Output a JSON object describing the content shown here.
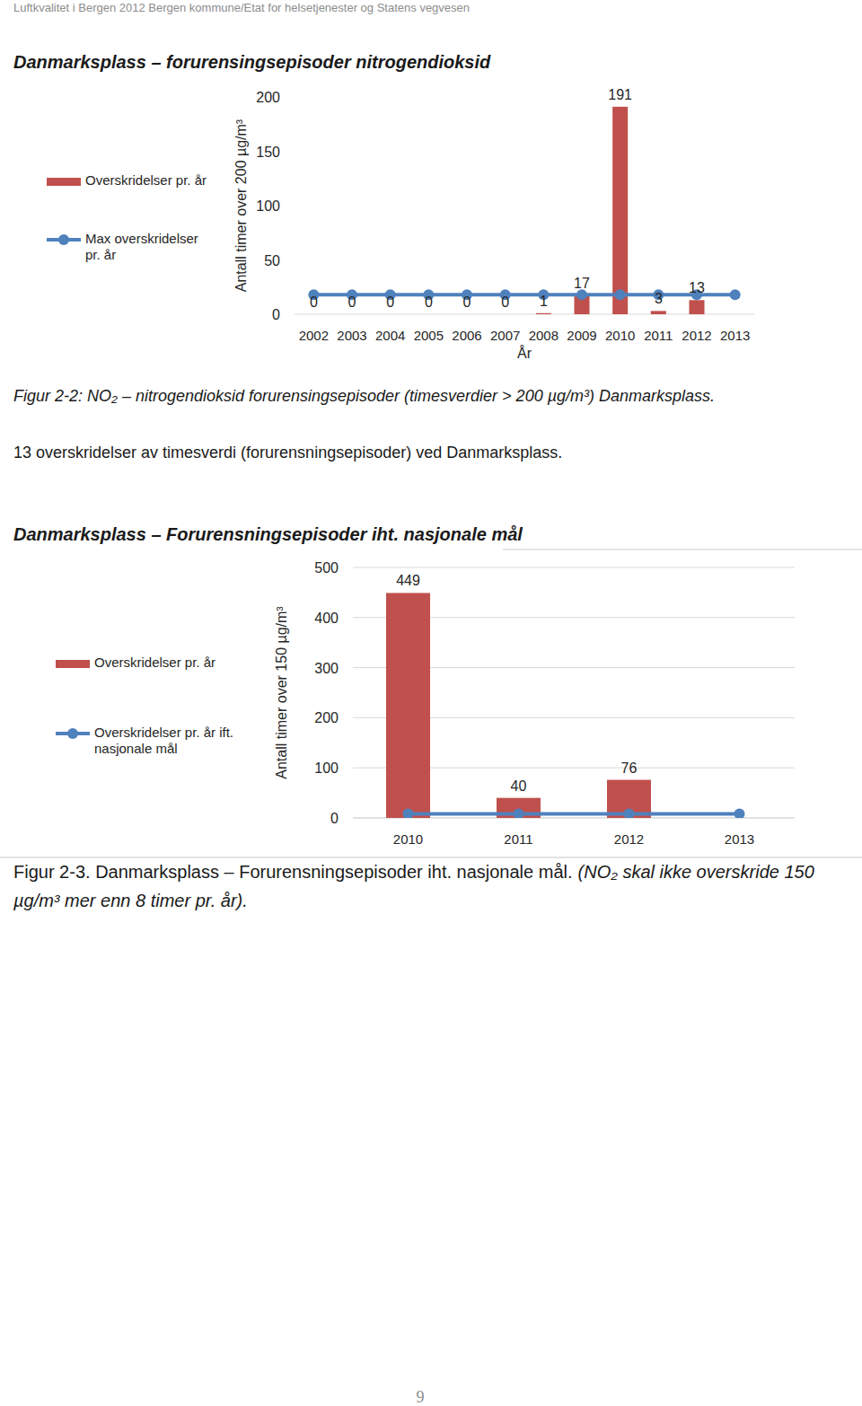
{
  "header": "Luftkvalitet i Bergen 2012 Bergen kommune/Etat for helsetjenester og Statens vegvesen",
  "chart_data": [
    {
      "type": "bar",
      "title": "Danmarksplass – forurensingsepisoder nitrogendioksid",
      "x_label": "År",
      "y_label": "Antall timer over 200 µg/m³",
      "categories": [
        "2002",
        "2003",
        "2004",
        "2005",
        "2006",
        "2007",
        "2008",
        "2009",
        "2010",
        "2011",
        "2012",
        "2013"
      ],
      "series": [
        {
          "name": "Overskridelser pr. år",
          "type": "bar",
          "color": "#c0504d",
          "values": [
            0,
            0,
            0,
            0,
            0,
            0,
            1,
            17,
            191,
            3,
            13,
            null
          ]
        },
        {
          "name": "Max overskridelser pr. år",
          "type": "line",
          "color": "#4f81bd",
          "marker": "circle",
          "values": [
            18,
            18,
            18,
            18,
            18,
            18,
            18,
            18,
            18,
            18,
            18,
            18
          ]
        }
      ],
      "ylim": [
        0,
        200
      ],
      "yticks": [
        0,
        50,
        100,
        150,
        200
      ],
      "grid": false,
      "legend": "left",
      "data_labels": true
    },
    {
      "type": "bar",
      "title": "Danmarksplass – Forurensningsepisoder iht. nasjonale mål",
      "y_label": "Antall timer over 150 µg/m³",
      "categories": [
        "2010",
        "2011",
        "2012",
        "2013"
      ],
      "series": [
        {
          "name": "Overskridelser pr. år",
          "type": "bar",
          "color": "#c0504d",
          "values": [
            449,
            40,
            76,
            null
          ]
        },
        {
          "name": "Overskridelser pr. år ift. nasjonale mål",
          "type": "line",
          "color": "#4f81bd",
          "marker": "circle",
          "values": [
            8,
            8,
            8,
            8
          ]
        }
      ],
      "ylim": [
        0,
        500
      ],
      "yticks": [
        0,
        100,
        200,
        300,
        400,
        500
      ],
      "grid": true,
      "legend": "left",
      "data_labels": true
    }
  ],
  "caption_1": "Figur 2-2: NO₂ – nitrogendioksid forurensingsepisoder (timesverdier > 200 µg/m³) Danmarksplass.",
  "paragraph": "13 overskridelser av timesverdi (forurensningsepisoder) ved Danmarksplass.",
  "caption_2": {
    "text": "Figur 2-3. Danmarksplass – Forurensningsepisoder iht. nasjonale mål.",
    "note": "(NO₂ skal ikke overskride 150 µg/m³ mer enn 8 timer pr. år)."
  },
  "page_number": 9
}
